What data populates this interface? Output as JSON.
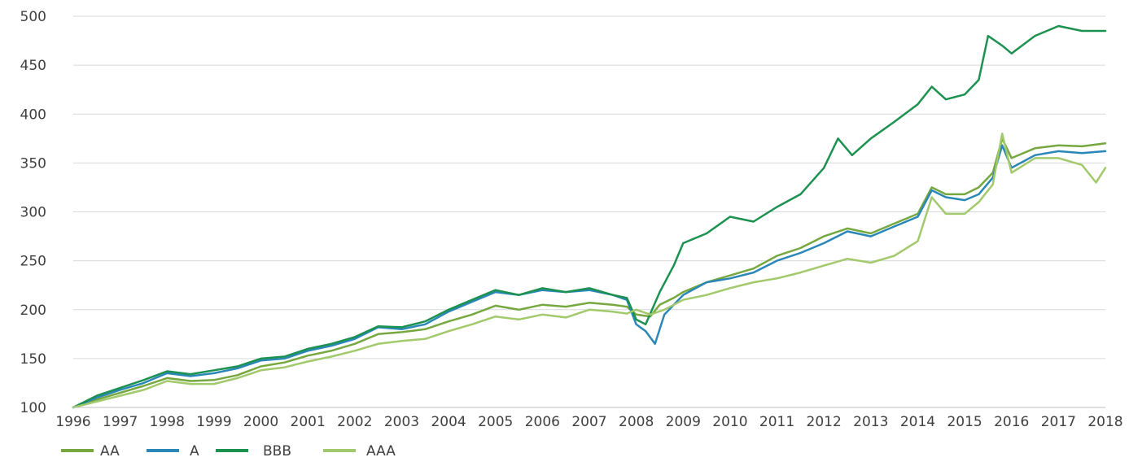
{
  "chart_data": {
    "type": "line",
    "title": "",
    "xlabel": "",
    "ylabel": "",
    "ylim": [
      100,
      500
    ],
    "xlim": [
      1996,
      2018
    ],
    "grid": "horizontal",
    "legend_position": "bottom-left",
    "x_ticks": [
      "1996",
      "1997",
      "1998",
      "1999",
      "2000",
      "2001",
      "2002",
      "2003",
      "2004",
      "2005",
      "2006",
      "2007",
      "2008",
      "2009",
      "2010",
      "2011",
      "2012",
      "2013",
      "2014",
      "2015",
      "2016",
      "2017",
      "2018"
    ],
    "y_ticks": [
      "100",
      "150",
      "200",
      "250",
      "300",
      "350",
      "400",
      "450",
      "500"
    ],
    "series": [
      {
        "name": "AA",
        "color": "#76a83f",
        "x": [
          1996,
          1996.5,
          1997,
          1997.5,
          1998,
          1998.5,
          1999,
          1999.5,
          2000,
          2000.5,
          2001,
          2001.5,
          2002,
          2002.5,
          2003,
          2003.5,
          2004,
          2004.5,
          2005,
          2005.5,
          2006,
          2006.5,
          2007,
          2007.5,
          2007.8,
          2008,
          2008.3,
          2008.5,
          2008.8,
          2009,
          2009.5,
          2010,
          2010.5,
          2011,
          2011.5,
          2012,
          2012.5,
          2013,
          2013.5,
          2014,
          2014.3,
          2014.6,
          2015,
          2015.3,
          2015.6,
          2015.8,
          2016,
          2016.5,
          2017,
          2017.5,
          2018
        ],
        "y": [
          100,
          108,
          115,
          122,
          130,
          127,
          128,
          133,
          142,
          146,
          153,
          158,
          165,
          175,
          177,
          180,
          188,
          195,
          204,
          200,
          205,
          203,
          207,
          205,
          203,
          195,
          193,
          205,
          212,
          218,
          228,
          235,
          242,
          255,
          263,
          275,
          283,
          278,
          288,
          298,
          325,
          318,
          318,
          325,
          340,
          375,
          355,
          365,
          368,
          367,
          370
        ]
      },
      {
        "name": "A",
        "color": "#2a87b7",
        "x": [
          1996,
          1996.5,
          1997,
          1997.5,
          1998,
          1998.5,
          1999,
          1999.5,
          2000,
          2000.5,
          2001,
          2001.5,
          2002,
          2002.5,
          2003,
          2003.5,
          2004,
          2004.5,
          2005,
          2005.5,
          2006,
          2006.5,
          2007,
          2007.5,
          2007.8,
          2008,
          2008.2,
          2008.4,
          2008.6,
          2009,
          2009.5,
          2010,
          2010.5,
          2011,
          2011.5,
          2012,
          2012.5,
          2013,
          2013.5,
          2014,
          2014.3,
          2014.6,
          2015,
          2015.3,
          2015.6,
          2015.8,
          2016,
          2016.5,
          2017,
          2017.5,
          2018
        ],
        "y": [
          100,
          110,
          118,
          125,
          135,
          132,
          135,
          140,
          148,
          150,
          158,
          163,
          170,
          182,
          180,
          185,
          198,
          208,
          218,
          215,
          220,
          218,
          220,
          215,
          210,
          185,
          178,
          165,
          195,
          215,
          228,
          232,
          238,
          250,
          258,
          268,
          280,
          275,
          285,
          295,
          322,
          315,
          312,
          318,
          335,
          368,
          345,
          358,
          362,
          360,
          362
        ]
      },
      {
        "name": "BBB",
        "color": "#1c9150",
        "x": [
          1996,
          1996.5,
          1997,
          1997.5,
          1998,
          1998.5,
          1999,
          1999.5,
          2000,
          2000.5,
          2001,
          2001.5,
          2002,
          2002.5,
          2003,
          2003.5,
          2004,
          2004.5,
          2005,
          2005.5,
          2006,
          2006.5,
          2007,
          2007.5,
          2007.8,
          2008,
          2008.2,
          2008.5,
          2008.8,
          2009,
          2009.5,
          2010,
          2010.5,
          2011,
          2011.5,
          2012,
          2012.3,
          2012.6,
          2013,
          2013.5,
          2014,
          2014.3,
          2014.6,
          2015,
          2015.3,
          2015.5,
          2015.8,
          2016,
          2016.5,
          2017,
          2017.5,
          2018
        ],
        "y": [
          100,
          112,
          120,
          128,
          137,
          134,
          138,
          142,
          150,
          152,
          160,
          165,
          172,
          183,
          182,
          188,
          200,
          210,
          220,
          215,
          222,
          218,
          222,
          215,
          212,
          190,
          185,
          218,
          245,
          268,
          278,
          295,
          290,
          305,
          318,
          345,
          375,
          358,
          375,
          392,
          410,
          428,
          415,
          420,
          435,
          480,
          470,
          462,
          480,
          490,
          485,
          485
        ]
      },
      {
        "name": "AAA",
        "color": "#a2c96b",
        "x": [
          1996,
          1996.5,
          1997,
          1997.5,
          1998,
          1998.5,
          1999,
          1999.5,
          2000,
          2000.5,
          2001,
          2001.5,
          2002,
          2002.5,
          2003,
          2003.5,
          2004,
          2004.5,
          2005,
          2005.5,
          2006,
          2006.5,
          2007,
          2007.5,
          2007.8,
          2008,
          2008.3,
          2008.6,
          2009,
          2009.5,
          2010,
          2010.5,
          2011,
          2011.5,
          2012,
          2012.5,
          2013,
          2013.5,
          2014,
          2014.3,
          2014.6,
          2015,
          2015.3,
          2015.6,
          2015.8,
          2016,
          2016.5,
          2017,
          2017.5,
          2017.8,
          2018
        ],
        "y": [
          100,
          106,
          112,
          118,
          127,
          124,
          124,
          130,
          138,
          141,
          147,
          152,
          158,
          165,
          168,
          170,
          178,
          185,
          193,
          190,
          195,
          192,
          200,
          198,
          196,
          200,
          195,
          200,
          210,
          215,
          222,
          228,
          232,
          238,
          245,
          252,
          248,
          255,
          270,
          315,
          298,
          298,
          310,
          328,
          380,
          340,
          355,
          355,
          348,
          330,
          345
        ]
      }
    ]
  }
}
